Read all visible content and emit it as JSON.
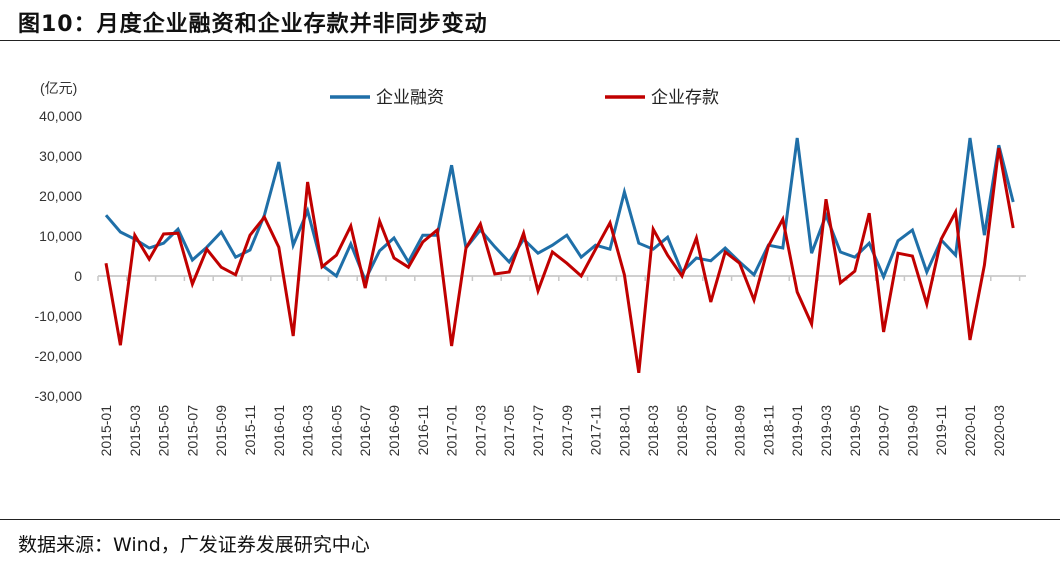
{
  "title": "图10：月度企业融资和企业存款并非同步变动",
  "source": "数据来源：Wind，广发证券发展研究中心",
  "chart_data": {
    "type": "line",
    "title": "",
    "ylabel": "(亿元)",
    "ylim": [
      -30000,
      40000
    ],
    "yticks": [
      40000,
      30000,
      20000,
      10000,
      0,
      -10000,
      -20000,
      -30000
    ],
    "ytick_labels": [
      "40,000",
      "30,000",
      "20,000",
      "10,000",
      "0",
      "-10,000",
      "-20,000",
      "-30,000"
    ],
    "grid": false,
    "legend_position": "top-center",
    "x": [
      "2015-01",
      "2015-02",
      "2015-03",
      "2015-04",
      "2015-05",
      "2015-06",
      "2015-07",
      "2015-08",
      "2015-09",
      "2015-10",
      "2015-11",
      "2015-12",
      "2016-01",
      "2016-02",
      "2016-03",
      "2016-04",
      "2016-05",
      "2016-06",
      "2016-07",
      "2016-08",
      "2016-09",
      "2016-10",
      "2016-11",
      "2016-12",
      "2017-01",
      "2017-02",
      "2017-03",
      "2017-04",
      "2017-05",
      "2017-06",
      "2017-07",
      "2017-08",
      "2017-09",
      "2017-10",
      "2017-11",
      "2017-12",
      "2018-01",
      "2018-02",
      "2018-03",
      "2018-04",
      "2018-05",
      "2018-06",
      "2018-07",
      "2018-08",
      "2018-09",
      "2018-10",
      "2018-11",
      "2018-12",
      "2019-01",
      "2019-02",
      "2019-03",
      "2019-04",
      "2019-05",
      "2019-06",
      "2019-07",
      "2019-08",
      "2019-09",
      "2019-10",
      "2019-11",
      "2019-12",
      "2020-01",
      "2020-02",
      "2020-03",
      "2020-04"
    ],
    "xtick_labels": [
      "2015-01",
      "2015-03",
      "2015-05",
      "2015-07",
      "2015-09",
      "2015-11",
      "2016-01",
      "2016-03",
      "2016-05",
      "2016-07",
      "2016-09",
      "2016-11",
      "2017-01",
      "2017-03",
      "2017-05",
      "2017-07",
      "2017-09",
      "2017-11",
      "2018-01",
      "2018-03",
      "2018-05",
      "2018-07",
      "2018-09",
      "2018-11",
      "2019-01",
      "2019-03",
      "2019-05",
      "2019-07",
      "2019-09",
      "2019-11",
      "2020-01",
      "2020-03"
    ],
    "series": [
      {
        "name": "企业融资",
        "color": "#1f6fa8",
        "values": [
          15200,
          11000,
          9200,
          7000,
          8200,
          11700,
          4000,
          7200,
          11000,
          4700,
          6500,
          15200,
          28500,
          7700,
          16300,
          2700,
          0,
          8000,
          -1000,
          6300,
          9500,
          3500,
          10200,
          10200,
          27700,
          7000,
          11500,
          7300,
          3500,
          9200,
          5700,
          7700,
          10200,
          4700,
          7700,
          6700,
          21000,
          8200,
          6700,
          9700,
          1000,
          4500,
          3800,
          7000,
          3500,
          300,
          7700,
          7000,
          34500,
          5700,
          15200,
          6000,
          4700,
          8200,
          -200,
          8800,
          11500,
          1000,
          9000,
          5200,
          34500,
          10200,
          32700,
          18500
        ]
      },
      {
        "name": "企业存款",
        "color": "#c00000",
        "values": [
          3200,
          -17300,
          10200,
          4200,
          10500,
          10700,
          -2000,
          6700,
          2200,
          300,
          10200,
          14700,
          7200,
          -15000,
          23500,
          2300,
          5200,
          12500,
          -3000,
          13700,
          4500,
          2200,
          8500,
          11500,
          -17500,
          7000,
          13000,
          500,
          1000,
          10700,
          -3700,
          6000,
          3200,
          0,
          6700,
          13300,
          300,
          -24200,
          11700,
          5200,
          0,
          9500,
          -6500,
          6000,
          3200,
          -6000,
          7500,
          14200,
          -4000,
          -12000,
          19200,
          -1700,
          1200,
          15700,
          -14000,
          5700,
          5000,
          -7000,
          9200,
          16000,
          -16000,
          2700,
          32000,
          12000
        ]
      }
    ]
  }
}
